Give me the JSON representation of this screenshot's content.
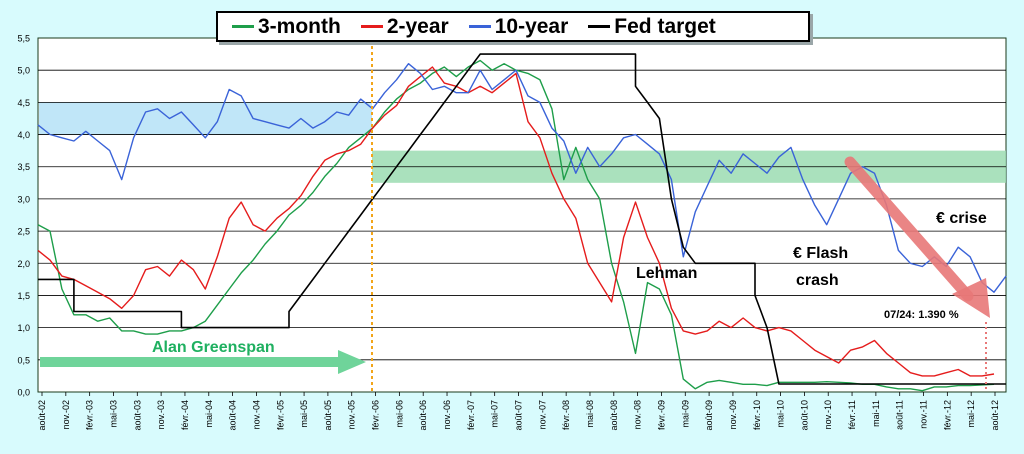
{
  "chart_data": {
    "type": "line",
    "ylim": [
      0,
      5.5
    ],
    "y_ticks": [
      "0,0",
      "0,5",
      "1,0",
      "1,5",
      "2,0",
      "2,5",
      "3,0",
      "3,5",
      "4,0",
      "4,5",
      "5,0",
      "5,5"
    ],
    "x_ticks": [
      "août-02",
      "nov.-02",
      "févr.-03",
      "mai-03",
      "août-03",
      "nov.-03",
      "févr.-04",
      "mai-04",
      "août-04",
      "nov.-04",
      "févr.-05",
      "mai-05",
      "août-05",
      "nov.-05",
      "févr.-06",
      "mai-06",
      "août-06",
      "nov.-06",
      "févr.-07",
      "mai-07",
      "août-07",
      "nov.-07",
      "févr.-08",
      "mai-08",
      "août-08",
      "nov.-08",
      "févr.-09",
      "mai-09",
      "août-09",
      "nov.-09",
      "févr.-10",
      "mai-10",
      "août-10",
      "nov.-10",
      "févr.-11",
      "mai-11",
      "août-11",
      "nov.-11",
      "févr.-12",
      "mai-12",
      "août-12"
    ],
    "grid": "horizontal",
    "legend_position": "top",
    "series": [
      {
        "name": "3-month",
        "color": "#1e9e4a",
        "values": [
          [
            0,
            2.6
          ],
          [
            1,
            2.5
          ],
          [
            2,
            1.6
          ],
          [
            3,
            1.2
          ],
          [
            4,
            1.2
          ],
          [
            5,
            1.1
          ],
          [
            6,
            1.15
          ],
          [
            7,
            0.95
          ],
          [
            8,
            0.95
          ],
          [
            9,
            0.9
          ],
          [
            10,
            0.9
          ],
          [
            11,
            0.95
          ],
          [
            12,
            0.95
          ],
          [
            13,
            1.0
          ],
          [
            14,
            1.1
          ],
          [
            15,
            1.35
          ],
          [
            16,
            1.6
          ],
          [
            17,
            1.85
          ],
          [
            18,
            2.05
          ],
          [
            19,
            2.3
          ],
          [
            20,
            2.5
          ],
          [
            21,
            2.75
          ],
          [
            22,
            2.9
          ],
          [
            23,
            3.1
          ],
          [
            24,
            3.35
          ],
          [
            25,
            3.55
          ],
          [
            26,
            3.8
          ],
          [
            27,
            3.95
          ],
          [
            28,
            4.1
          ],
          [
            29,
            4.35
          ],
          [
            30,
            4.55
          ],
          [
            31,
            4.7
          ],
          [
            32,
            4.8
          ],
          [
            33,
            4.95
          ],
          [
            34,
            5.05
          ],
          [
            35,
            4.9
          ],
          [
            36,
            5.05
          ],
          [
            37,
            5.15
          ],
          [
            38,
            5.0
          ],
          [
            39,
            5.1
          ],
          [
            40,
            5.0
          ],
          [
            41,
            4.95
          ],
          [
            42,
            4.85
          ],
          [
            43,
            4.4
          ],
          [
            44,
            3.3
          ],
          [
            45,
            3.8
          ],
          [
            46,
            3.3
          ],
          [
            47,
            3.0
          ],
          [
            48,
            2.0
          ],
          [
            49,
            1.4
          ],
          [
            50,
            0.6
          ],
          [
            51,
            1.7
          ],
          [
            52,
            1.6
          ],
          [
            53,
            1.2
          ],
          [
            54,
            0.2
          ],
          [
            55,
            0.05
          ],
          [
            56,
            0.15
          ],
          [
            57,
            0.18
          ],
          [
            58,
            0.15
          ],
          [
            59,
            0.12
          ],
          [
            60,
            0.12
          ],
          [
            61,
            0.1
          ],
          [
            62,
            0.15
          ],
          [
            63,
            0.15
          ],
          [
            64,
            0.15
          ],
          [
            65,
            0.15
          ],
          [
            66,
            0.16
          ],
          [
            67,
            0.15
          ],
          [
            68,
            0.14
          ],
          [
            69,
            0.12
          ],
          [
            70,
            0.12
          ],
          [
            71,
            0.08
          ],
          [
            72,
            0.05
          ],
          [
            73,
            0.05
          ],
          [
            74,
            0.02
          ],
          [
            75,
            0.08
          ],
          [
            76,
            0.08
          ],
          [
            77,
            0.1
          ],
          [
            78,
            0.1
          ],
          [
            79,
            0.11
          ],
          [
            80,
            0.12
          ]
        ]
      },
      {
        "name": "2-year",
        "color": "#e51c1c",
        "values": [
          [
            0,
            2.2
          ],
          [
            1,
            2.05
          ],
          [
            2,
            1.8
          ],
          [
            3,
            1.75
          ],
          [
            4,
            1.65
          ],
          [
            5,
            1.55
          ],
          [
            6,
            1.45
          ],
          [
            7,
            1.3
          ],
          [
            8,
            1.5
          ],
          [
            9,
            1.9
          ],
          [
            10,
            1.95
          ],
          [
            11,
            1.8
          ],
          [
            12,
            2.05
          ],
          [
            13,
            1.9
          ],
          [
            14,
            1.6
          ],
          [
            15,
            2.1
          ],
          [
            16,
            2.7
          ],
          [
            17,
            2.95
          ],
          [
            18,
            2.6
          ],
          [
            19,
            2.5
          ],
          [
            20,
            2.7
          ],
          [
            21,
            2.85
          ],
          [
            22,
            3.05
          ],
          [
            23,
            3.35
          ],
          [
            24,
            3.6
          ],
          [
            25,
            3.7
          ],
          [
            26,
            3.75
          ],
          [
            27,
            3.85
          ],
          [
            28,
            4.1
          ],
          [
            29,
            4.3
          ],
          [
            30,
            4.45
          ],
          [
            31,
            4.75
          ],
          [
            32,
            4.9
          ],
          [
            33,
            5.05
          ],
          [
            34,
            4.8
          ],
          [
            35,
            4.75
          ],
          [
            36,
            4.65
          ],
          [
            37,
            4.75
          ],
          [
            38,
            4.65
          ],
          [
            39,
            4.8
          ],
          [
            40,
            4.95
          ],
          [
            41,
            4.2
          ],
          [
            42,
            3.95
          ],
          [
            43,
            3.4
          ],
          [
            44,
            3.0
          ],
          [
            45,
            2.7
          ],
          [
            46,
            2.0
          ],
          [
            47,
            1.7
          ],
          [
            48,
            1.4
          ],
          [
            49,
            2.4
          ],
          [
            50,
            2.95
          ],
          [
            51,
            2.4
          ],
          [
            52,
            2.0
          ],
          [
            53,
            1.3
          ],
          [
            54,
            0.95
          ],
          [
            55,
            0.9
          ],
          [
            56,
            0.95
          ],
          [
            57,
            1.1
          ],
          [
            58,
            1.0
          ],
          [
            59,
            1.15
          ],
          [
            60,
            1.0
          ],
          [
            61,
            0.95
          ],
          [
            62,
            1.0
          ],
          [
            63,
            0.95
          ],
          [
            64,
            0.8
          ],
          [
            65,
            0.65
          ],
          [
            66,
            0.55
          ],
          [
            67,
            0.45
          ],
          [
            68,
            0.65
          ],
          [
            69,
            0.7
          ],
          [
            70,
            0.8
          ],
          [
            71,
            0.6
          ],
          [
            72,
            0.45
          ],
          [
            73,
            0.3
          ],
          [
            74,
            0.25
          ],
          [
            75,
            0.25
          ],
          [
            76,
            0.3
          ],
          [
            77,
            0.35
          ],
          [
            78,
            0.25
          ],
          [
            79,
            0.25
          ],
          [
            80,
            0.28
          ]
        ]
      },
      {
        "name": "10-year",
        "color": "#3a63d8",
        "values": [
          [
            0,
            4.15
          ],
          [
            1,
            4.0
          ],
          [
            2,
            3.95
          ],
          [
            3,
            3.9
          ],
          [
            4,
            4.05
          ],
          [
            5,
            3.9
          ],
          [
            6,
            3.75
          ],
          [
            7,
            3.3
          ],
          [
            8,
            3.95
          ],
          [
            9,
            4.35
          ],
          [
            10,
            4.4
          ],
          [
            11,
            4.25
          ],
          [
            12,
            4.35
          ],
          [
            13,
            4.15
          ],
          [
            14,
            3.95
          ],
          [
            15,
            4.2
          ],
          [
            16,
            4.7
          ],
          [
            17,
            4.6
          ],
          [
            18,
            4.25
          ],
          [
            19,
            4.2
          ],
          [
            20,
            4.15
          ],
          [
            21,
            4.1
          ],
          [
            22,
            4.25
          ],
          [
            23,
            4.1
          ],
          [
            24,
            4.2
          ],
          [
            25,
            4.35
          ],
          [
            26,
            4.3
          ],
          [
            27,
            4.55
          ],
          [
            28,
            4.4
          ],
          [
            29,
            4.65
          ],
          [
            30,
            4.85
          ],
          [
            31,
            5.1
          ],
          [
            32,
            4.95
          ],
          [
            33,
            4.7
          ],
          [
            34,
            4.75
          ],
          [
            35,
            4.65
          ],
          [
            36,
            4.65
          ],
          [
            37,
            5.0
          ],
          [
            38,
            4.7
          ],
          [
            39,
            4.85
          ],
          [
            40,
            5.0
          ],
          [
            41,
            4.6
          ],
          [
            42,
            4.5
          ],
          [
            43,
            4.1
          ],
          [
            44,
            3.9
          ],
          [
            45,
            3.4
          ],
          [
            46,
            3.8
          ],
          [
            47,
            3.5
          ],
          [
            48,
            3.7
          ],
          [
            49,
            3.95
          ],
          [
            50,
            4.0
          ],
          [
            51,
            3.85
          ],
          [
            52,
            3.7
          ],
          [
            53,
            3.3
          ],
          [
            54,
            2.1
          ],
          [
            55,
            2.8
          ],
          [
            56,
            3.2
          ],
          [
            57,
            3.6
          ],
          [
            58,
            3.4
          ],
          [
            59,
            3.7
          ],
          [
            60,
            3.55
          ],
          [
            61,
            3.4
          ],
          [
            62,
            3.65
          ],
          [
            63,
            3.8
          ],
          [
            64,
            3.3
          ],
          [
            65,
            2.9
          ],
          [
            66,
            2.6
          ],
          [
            67,
            3.0
          ],
          [
            68,
            3.4
          ],
          [
            69,
            3.5
          ],
          [
            70,
            3.4
          ],
          [
            71,
            2.9
          ],
          [
            72,
            2.2
          ],
          [
            73,
            2.0
          ],
          [
            74,
            1.95
          ],
          [
            75,
            2.1
          ],
          [
            76,
            1.95
          ],
          [
            77,
            2.25
          ],
          [
            78,
            2.1
          ],
          [
            79,
            1.7
          ],
          [
            80,
            1.55
          ],
          [
            81,
            1.8
          ]
        ]
      },
      {
        "name": "Fed target",
        "color": "#000000",
        "values": [
          [
            0,
            1.75
          ],
          [
            3,
            1.75
          ],
          [
            3,
            1.25
          ],
          [
            12,
            1.25
          ],
          [
            12,
            1.0
          ],
          [
            21,
            1.0
          ],
          [
            21,
            1.25
          ],
          [
            22,
            1.5
          ],
          [
            23,
            1.75
          ],
          [
            24,
            2.0
          ],
          [
            25,
            2.25
          ],
          [
            26,
            2.5
          ],
          [
            27,
            2.75
          ],
          [
            28,
            3.0
          ],
          [
            29,
            3.25
          ],
          [
            30,
            3.5
          ],
          [
            31,
            3.75
          ],
          [
            32,
            4.0
          ],
          [
            33,
            4.25
          ],
          [
            34,
            4.5
          ],
          [
            35,
            4.75
          ],
          [
            36,
            5.0
          ],
          [
            37,
            5.25
          ],
          [
            50,
            5.25
          ],
          [
            50,
            4.75
          ],
          [
            51,
            4.5
          ],
          [
            52,
            4.25
          ],
          [
            53,
            3.0
          ],
          [
            54,
            2.25
          ],
          [
            55,
            2.0
          ],
          [
            60,
            2.0
          ],
          [
            60,
            1.5
          ],
          [
            61,
            1.0
          ],
          [
            62,
            0.125
          ],
          [
            81,
            0.125
          ]
        ]
      }
    ],
    "annotations": {
      "greenspan": "Alan Greenspan",
      "lehman": "Lehman",
      "flash_crash": "€ Flash crash",
      "crise": "€ crise",
      "rate_label": "07/24: 1.390 %"
    }
  }
}
